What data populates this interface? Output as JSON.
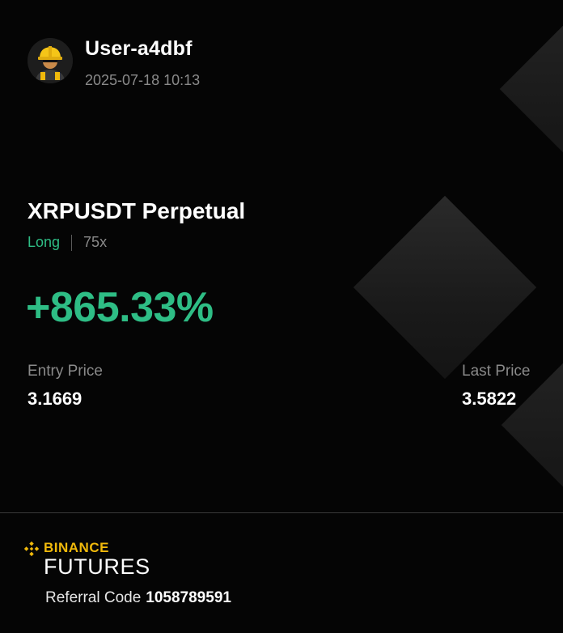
{
  "user": {
    "username": "User-a4dbf",
    "datetime": "2025-07-18 10:13",
    "avatar_icon": "construction-worker-icon"
  },
  "position": {
    "contract": "XRPUSDT Perpetual",
    "side": "Long",
    "leverage": "75x",
    "pnl_percent": "+865.33%",
    "entry_label": "Entry Price",
    "entry_price": "3.1669",
    "last_label": "Last Price",
    "last_price": "3.5822"
  },
  "footer": {
    "brand_name": "BINANCE",
    "brand_product": "FUTURES",
    "referral_label": "Referral Code",
    "referral_code": "1058789591"
  },
  "colors": {
    "background": "#050505",
    "positive": "#2ebd85",
    "brand": "#f0b90b",
    "muted_text": "#8a8a8a"
  }
}
